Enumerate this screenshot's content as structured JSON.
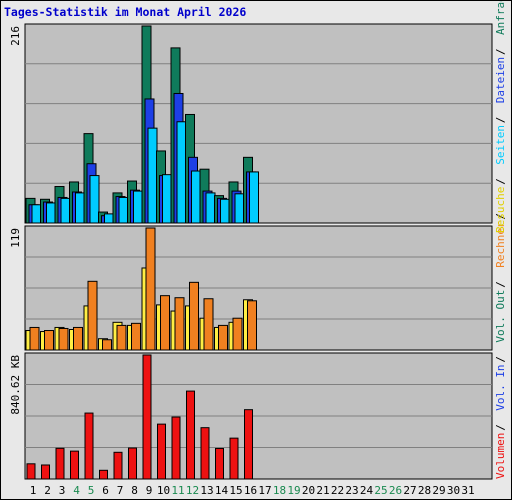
{
  "title": "Tages-Statistik im Monat April 2026",
  "chart_data": [
    {
      "type": "bar",
      "panel": "requests",
      "max_label": "216",
      "ylim": [
        0,
        216
      ],
      "grid": true,
      "x": [
        1,
        2,
        3,
        4,
        5,
        6,
        7,
        8,
        9,
        10,
        11,
        12,
        13,
        14,
        15,
        16,
        17,
        18,
        19,
        20,
        21,
        22,
        23,
        24,
        25,
        26,
        27,
        28,
        29,
        30,
        31
      ],
      "series": [
        {
          "name": "Anfragen",
          "color": "#0f7b5b",
          "values": [
            27,
            26,
            40,
            45,
            98,
            12,
            33,
            46,
            216,
            79,
            192,
            119,
            59,
            30,
            45,
            72,
            0,
            0,
            0,
            0,
            0,
            0,
            0,
            0,
            0,
            0,
            0,
            0,
            0,
            0,
            0
          ]
        },
        {
          "name": "Dateien",
          "color": "#1d3fe6",
          "values": [
            20,
            23,
            28,
            34,
            65,
            8,
            29,
            36,
            136,
            52,
            142,
            72,
            35,
            27,
            35,
            56,
            0,
            0,
            0,
            0,
            0,
            0,
            0,
            0,
            0,
            0,
            0,
            0,
            0,
            0,
            0
          ]
        },
        {
          "name": "Seiten",
          "color": "#00ccff",
          "values": [
            20,
            22,
            27,
            33,
            52,
            10,
            28,
            35,
            104,
            53,
            111,
            57,
            33,
            26,
            32,
            56,
            0,
            0,
            0,
            0,
            0,
            0,
            0,
            0,
            0,
            0,
            0,
            0,
            0,
            0,
            0
          ]
        }
      ]
    },
    {
      "type": "bar",
      "panel": "visits",
      "max_label": "119",
      "ylim": [
        0,
        119
      ],
      "grid": true,
      "x": [
        1,
        2,
        3,
        4,
        5,
        6,
        7,
        8,
        9,
        10,
        11,
        12,
        13,
        14,
        15,
        16,
        17,
        18,
        19,
        20,
        21,
        22,
        23,
        24,
        25,
        26,
        27,
        28,
        29,
        30,
        31
      ],
      "series": [
        {
          "name": "Besuche",
          "color": "#ffee44",
          "values": [
            19,
            18,
            22,
            20,
            43,
            11,
            27,
            24,
            80,
            44,
            38,
            43,
            31,
            22,
            27,
            49,
            0,
            0,
            0,
            0,
            0,
            0,
            0,
            0,
            0,
            0,
            0,
            0,
            0,
            0,
            0
          ]
        },
        {
          "name": "Rechner",
          "color": "#f08020",
          "values": [
            22,
            19,
            21,
            22,
            67,
            10,
            24,
            26,
            119,
            53,
            51,
            66,
            50,
            24,
            31,
            48,
            0,
            0,
            0,
            0,
            0,
            0,
            0,
            0,
            0,
            0,
            0,
            0,
            0,
            0,
            0
          ]
        }
      ]
    },
    {
      "type": "bar",
      "panel": "volume",
      "max_label": "840.62 KB",
      "ylim": [
        0,
        840.62
      ],
      "grid": true,
      "x": [
        1,
        2,
        3,
        4,
        5,
        6,
        7,
        8,
        9,
        10,
        11,
        12,
        13,
        14,
        15,
        16,
        17,
        18,
        19,
        20,
        21,
        22,
        23,
        24,
        25,
        26,
        27,
        28,
        29,
        30,
        31
      ],
      "series": [
        {
          "name": "Volumen",
          "color": "#ee1111",
          "values": [
            103,
            95,
            208,
            189,
            447,
            59,
            181,
            210,
            840.62,
            372,
            420,
            596,
            348,
            207,
            277,
            470,
            0,
            0,
            0,
            0,
            0,
            0,
            0,
            0,
            0,
            0,
            0,
            0,
            0,
            0,
            0
          ]
        }
      ]
    }
  ],
  "legend_top": [
    "Anfragen",
    "Dateien",
    "Seiten",
    "Besuche"
  ],
  "legend_bottom": [
    "Rechner",
    "Vol. Out",
    "Vol. In",
    "Volumen"
  ],
  "legend_colors": {
    "Anfragen": "#0f7b5b",
    "Dateien": "#1d3fe6",
    "Seiten": "#00ccff",
    "Besuche": "#e0d000",
    "Rechner": "#f08020",
    "Vol. Out": "#0f7b5b",
    "Vol. In": "#1d3fe6",
    "Volumen": "#ee1111"
  },
  "separator": "/",
  "days": [
    1,
    2,
    3,
    4,
    5,
    6,
    7,
    8,
    9,
    10,
    11,
    12,
    13,
    14,
    15,
    16,
    17,
    18,
    19,
    20,
    21,
    22,
    23,
    24,
    25,
    26,
    27,
    28,
    29,
    30,
    31
  ],
  "weekend_days": [
    4,
    5,
    11,
    12,
    18,
    19,
    25,
    26
  ],
  "colors": {
    "plot_bg": "#c0c0c0",
    "frame_bg": "#e8e8e8",
    "grid": "#808080",
    "weekday_label": "#000000",
    "weekend_label": "#1a8a50",
    "title": "#0000cc"
  }
}
